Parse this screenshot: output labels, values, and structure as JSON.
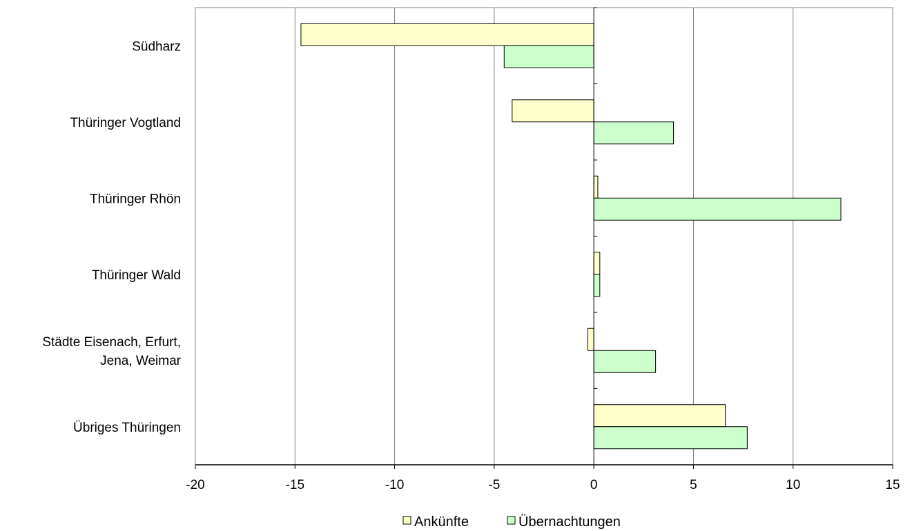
{
  "chart_data": {
    "type": "bar",
    "orientation": "horizontal",
    "categories": [
      [
        "Südharz"
      ],
      [
        "Thüringer Vogtland"
      ],
      [
        "Thüringer Rhön"
      ],
      [
        "Thüringer Wald"
      ],
      [
        "Städte Eisenach, Erfurt,",
        "Jena, Weimar"
      ],
      [
        "Übriges Thüringen"
      ]
    ],
    "series": [
      {
        "name": "Ankünfte",
        "color": "#ffffcc",
        "values": [
          -14.7,
          -4.1,
          0.2,
          0.3,
          -0.3,
          6.6
        ]
      },
      {
        "name": "Übernachtungen",
        "color": "#ccffcc",
        "values": [
          -4.5,
          4.0,
          12.4,
          0.3,
          3.1,
          7.7
        ]
      }
    ],
    "xlim": [
      -20,
      15
    ],
    "xticks": [
      -20,
      -15,
      -10,
      -5,
      0,
      5,
      10,
      15
    ],
    "grid": "vertical",
    "legend": "bottom"
  }
}
